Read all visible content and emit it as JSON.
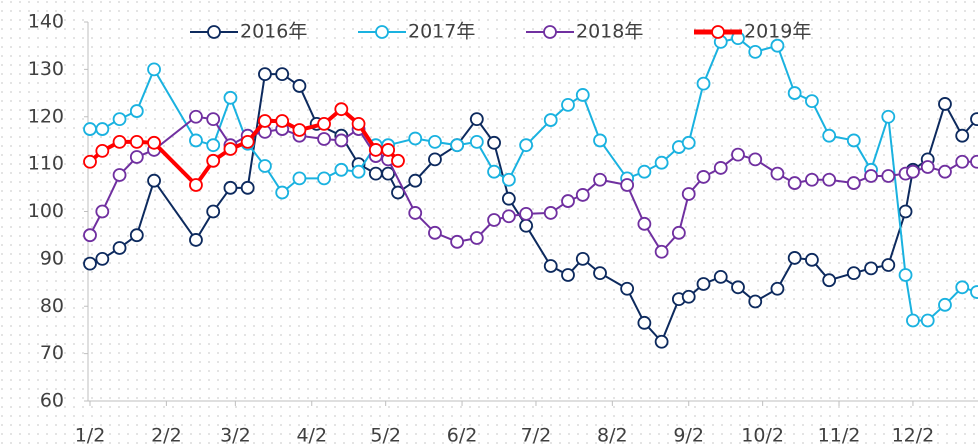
{
  "chart_data": {
    "type": "line",
    "xlim": [
      0,
      360
    ],
    "xticks": [
      {
        "value": 0,
        "label": "1/2"
      },
      {
        "value": 31,
        "label": "2/2"
      },
      {
        "value": 59,
        "label": "3/2"
      },
      {
        "value": 90,
        "label": "4/2"
      },
      {
        "value": 120,
        "label": "5/2"
      },
      {
        "value": 151,
        "label": "6/2"
      },
      {
        "value": 181,
        "label": "7/2"
      },
      {
        "value": 212,
        "label": "8/2"
      },
      {
        "value": 243,
        "label": "9/2"
      },
      {
        "value": 273,
        "label": "10/2"
      },
      {
        "value": 304,
        "label": "11/2"
      },
      {
        "value": 334,
        "label": "12/2"
      }
    ],
    "ylim": [
      60,
      140
    ],
    "yticks": [
      60,
      70,
      80,
      90,
      100,
      110,
      120,
      130,
      140
    ],
    "legend": "top",
    "series": [
      {
        "name": "2016年",
        "color": "#0d2a5e",
        "x": [
          0,
          5,
          12,
          19,
          26,
          43,
          50,
          57,
          64,
          71,
          78,
          85,
          92,
          102,
          109,
          116,
          121,
          125,
          132,
          140,
          149,
          157,
          164,
          170,
          177,
          187,
          194,
          200,
          207,
          218,
          225,
          232,
          239,
          243,
          249,
          256,
          263,
          270,
          279,
          286,
          293,
          300,
          310,
          317,
          324,
          331,
          334,
          340,
          347,
          354,
          360
        ],
        "values": [
          89,
          90,
          92.3,
          95,
          106.5,
          94,
          100,
          105,
          105,
          129,
          129,
          126.5,
          118.5,
          116,
          110,
          108,
          108,
          104,
          106.5,
          111,
          114,
          119.5,
          114.5,
          102.7,
          97,
          88.5,
          86.6,
          90,
          87,
          83.7,
          76.5,
          72.5,
          81.5,
          82,
          84.7,
          86.2,
          84,
          81,
          83.7,
          90.2,
          89.8,
          85.5,
          87,
          88,
          88.7,
          100,
          108.8,
          111,
          122.7,
          116,
          119.5
        ]
      },
      {
        "name": "2017年",
        "color": "#1ab2e0",
        "x": [
          0,
          5,
          12,
          19,
          26,
          43,
          50,
          57,
          64,
          71,
          78,
          85,
          95,
          102,
          109,
          116,
          121,
          132,
          140,
          149,
          157,
          164,
          170,
          177,
          187,
          194,
          200,
          207,
          218,
          225,
          232,
          239,
          243,
          249,
          256,
          263,
          270,
          279,
          286,
          293,
          300,
          310,
          317,
          324,
          331,
          334,
          340,
          347,
          354,
          360
        ],
        "values": [
          117.4,
          117.4,
          119.5,
          121.2,
          130,
          115,
          114,
          124,
          114.3,
          109.6,
          104,
          107,
          107,
          108.8,
          108.4,
          114,
          114,
          115.4,
          114.7,
          114,
          114.7,
          108.4,
          106.7,
          114,
          119.3,
          122.5,
          124.6,
          115,
          107,
          108.4,
          110.3,
          113.6,
          114.5,
          127,
          135.8,
          136.6,
          133.7,
          135,
          125,
          123.3,
          116,
          115,
          108.8,
          120,
          86.6,
          77,
          77,
          80.3,
          84,
          83
        ]
      },
      {
        "name": "2018年",
        "color": "#7030a0",
        "x": [
          0,
          5,
          12,
          19,
          26,
          43,
          50,
          57,
          64,
          71,
          78,
          85,
          95,
          102,
          109,
          116,
          121,
          132,
          140,
          149,
          157,
          164,
          170,
          177,
          187,
          194,
          200,
          207,
          218,
          225,
          232,
          239,
          243,
          249,
          256,
          263,
          270,
          279,
          286,
          293,
          300,
          310,
          317,
          324,
          331,
          334,
          340,
          347,
          354,
          360
        ],
        "values": [
          95,
          100,
          107.7,
          111.5,
          113,
          120,
          119.5,
          114,
          116,
          116.8,
          117.4,
          116,
          115.3,
          115,
          117.4,
          111.7,
          111,
          99.7,
          95.5,
          93.6,
          94.4,
          98.2,
          99,
          99.5,
          99.7,
          102.2,
          103.5,
          106.7,
          105.6,
          97.4,
          91.5,
          95.5,
          103.7,
          107.3,
          109.2,
          112,
          111,
          108,
          106,
          106.7,
          106.7,
          106,
          107.5,
          107.5,
          108,
          108.4,
          109.4,
          108.4,
          110.5,
          110.5
        ]
      },
      {
        "name": "2019年",
        "color": "#ff0000",
        "x": [
          0,
          5,
          12,
          19,
          26,
          43,
          50,
          57,
          64,
          71,
          78,
          85,
          95,
          102,
          109,
          116,
          121,
          125
        ],
        "values": [
          110.5,
          112.8,
          114.7,
          114.7,
          114.5,
          105.6,
          110.7,
          113.2,
          114.7,
          119.1,
          119.1,
          117.2,
          118.5,
          121.6,
          118.5,
          113,
          113,
          110.7
        ]
      }
    ]
  }
}
